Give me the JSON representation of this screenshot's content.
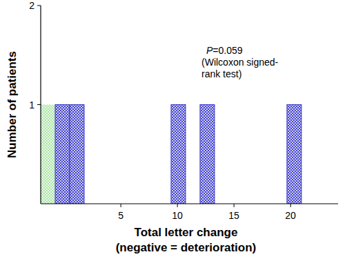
{
  "chart_data": {
    "type": "histogram",
    "y_label": "Number of patients",
    "x_label": "Total letter change\n(negative = deterioration)",
    "annotation": [
      "P=0.059",
      "(Wilcoxon signed-",
      "rank test)"
    ],
    "bins": [
      -2.08,
      -0.8,
      0.48,
      1.76,
      3.04,
      4.32,
      5.6,
      6.88,
      8.16,
      9.44,
      10.72,
      12.0,
      13.28,
      14.56,
      15.84,
      17.12,
      18.4,
      19.68,
      20.96
    ],
    "counts": [
      1,
      1,
      1,
      0,
      0,
      0,
      0,
      0,
      0,
      1,
      0,
      1,
      0,
      0,
      0,
      0,
      0,
      1
    ],
    "colors": [
      "#a6e3a1",
      "#3535c8",
      "#3535c8",
      "#3535c8",
      "#3535c8",
      "#3535c8",
      "#3535c8",
      "#3535c8",
      "#3535c8",
      "#3535c8",
      "#3535c8",
      "#3535c8",
      "#3535c8",
      "#3535c8",
      "#3535c8",
      "#3535c8",
      "#3535c8",
      "#3535c8"
    ],
    "xlim": [
      -2.08,
      24.2
    ],
    "xticks": [
      5,
      10,
      15,
      20
    ],
    "ylim": [
      0,
      2
    ],
    "yticks": [
      1,
      2
    ],
    "grid": false
  }
}
